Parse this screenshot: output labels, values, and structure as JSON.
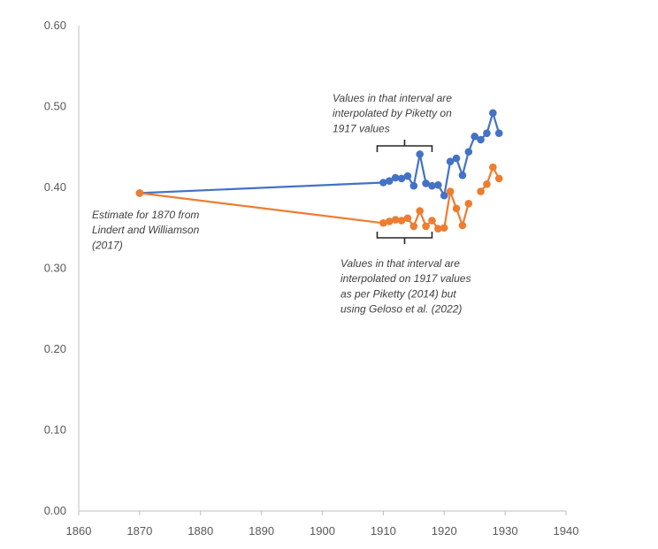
{
  "chart_data": {
    "type": "line",
    "title": "",
    "xlabel": "",
    "ylabel": "",
    "xlim": [
      1860,
      1940
    ],
    "ylim": [
      0,
      0.6
    ],
    "x_ticks": [
      "1860",
      "1870",
      "1880",
      "1890",
      "1900",
      "1910",
      "1920",
      "1930",
      "1940"
    ],
    "y_ticks": [
      "0.00",
      "0.10",
      "0.20",
      "0.30",
      "0.40",
      "0.50",
      "0.60"
    ],
    "grid": false,
    "legend": "none",
    "series": [
      {
        "color": "#4472C4",
        "points": [
          [
            1870,
            0.393
          ],
          [
            1910,
            0.406
          ],
          [
            1911,
            0.408
          ],
          [
            1912,
            0.412
          ],
          [
            1913,
            0.411
          ],
          [
            1914,
            0.414
          ],
          [
            1915,
            0.402
          ],
          [
            1916,
            0.441
          ],
          [
            1917,
            0.405
          ],
          [
            1918,
            0.402
          ],
          [
            1919,
            0.403
          ],
          [
            1920,
            0.39
          ],
          [
            1921,
            0.432
          ],
          [
            1922,
            0.436
          ],
          [
            1923,
            0.415
          ],
          [
            1924,
            0.444
          ],
          [
            1925,
            0.463
          ],
          [
            1926,
            0.459
          ],
          [
            1927,
            0.467
          ],
          [
            1928,
            0.492
          ],
          [
            1929,
            0.467
          ]
        ]
      },
      {
        "color": "#ED7D31",
        "points": [
          [
            1870,
            0.393
          ],
          [
            1910,
            0.356
          ],
          [
            1911,
            0.358
          ],
          [
            1912,
            0.36
          ],
          [
            1913,
            0.359
          ],
          [
            1914,
            0.362
          ],
          [
            1915,
            0.352
          ],
          [
            1916,
            0.371
          ],
          [
            1917,
            0.352
          ],
          [
            1918,
            0.359
          ],
          [
            1919,
            0.349
          ],
          [
            1920,
            0.35
          ],
          [
            1921,
            0.395
          ],
          [
            1922,
            0.374
          ],
          [
            1923,
            0.353
          ],
          [
            1924,
            0.38
          ],
          [
            1925,
            null
          ],
          [
            1926,
            0.395
          ],
          [
            1927,
            0.404
          ],
          [
            1928,
            0.425
          ],
          [
            1929,
            0.411
          ]
        ]
      }
    ],
    "annotations": [
      {
        "id": "annot-blue-interval",
        "lines": [
          "Values in that interval are",
          "interpolated by Piketty on",
          "1917 values"
        ],
        "x_range": [
          1909,
          1918
        ],
        "anchor": "above-blue"
      },
      {
        "id": "annot-1870",
        "lines": [
          "Estimate for 1870 from",
          "Lindert and Williamson",
          "(2017)"
        ],
        "anchor": "below-1870"
      },
      {
        "id": "annot-orange-interval",
        "lines": [
          "Values in that interval are",
          "interpolated on 1917 values",
          "as per Piketty (2014) but",
          "using Geloso et al. (2022)"
        ],
        "x_range": [
          1909,
          1918
        ],
        "anchor": "below-orange"
      }
    ]
  }
}
